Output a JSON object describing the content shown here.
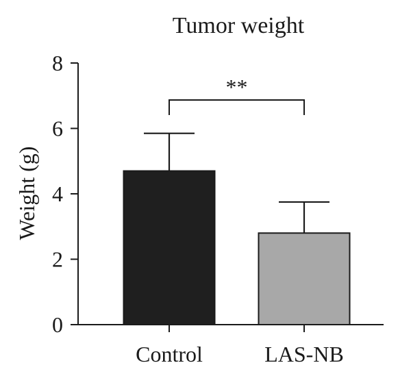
{
  "chart_data": {
    "type": "bar",
    "title": "Tumor weight",
    "xlabel": "",
    "ylabel": "Weight (g)",
    "categories": [
      "Control",
      "LAS-NB"
    ],
    "values": [
      4.7,
      2.8
    ],
    "error": [
      1.15,
      0.95
    ],
    "bar_colors": [
      "#1f1f1f",
      "#a8a8a8"
    ],
    "ylim": [
      0,
      8
    ],
    "yticks": [
      "0",
      "2",
      "4",
      "6",
      "8"
    ],
    "grid": false,
    "annotations": [
      {
        "text": "**",
        "between": [
          "Control",
          "LAS-NB"
        ]
      }
    ]
  }
}
